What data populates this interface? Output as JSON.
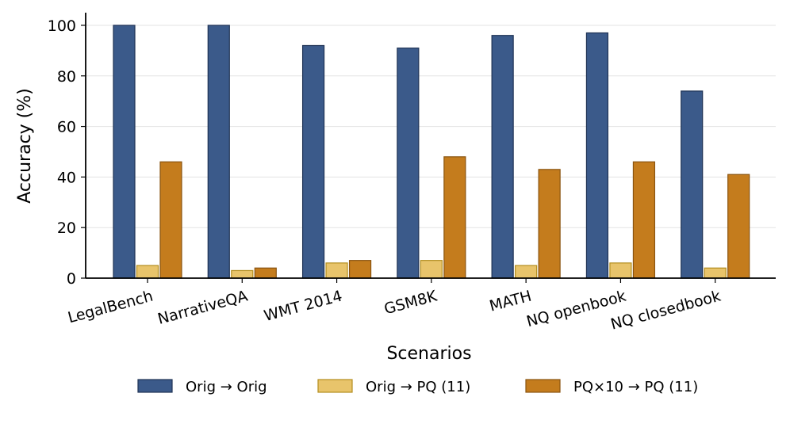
{
  "chart_data": {
    "type": "bar",
    "title": "",
    "xlabel": "Scenarios",
    "ylabel": "Accuracy (%)",
    "ylim": [
      0,
      105
    ],
    "yticks": [
      0,
      20,
      40,
      60,
      80,
      100
    ],
    "grid": "horizontal",
    "legend_position": "bottom",
    "categories": [
      "LegalBench",
      "NarrativeQA",
      "WMT 2014",
      "GSM8K",
      "MATH",
      "NQ openbook",
      "NQ closedbook"
    ],
    "series": [
      {
        "name": "Orig → Orig",
        "color": "#3b5a8a",
        "edge": "#1f3355",
        "values": [
          100,
          100,
          92,
          91,
          96,
          97,
          74
        ]
      },
      {
        "name": "Orig → PQ (11)",
        "color": "#e8c46b",
        "edge": "#b38e1f",
        "values": [
          5,
          3,
          6,
          7,
          5,
          6,
          4
        ]
      },
      {
        "name": "PQ×10 → PQ (11)",
        "color": "#c47c1d",
        "edge": "#8a5410",
        "values": [
          46,
          4,
          7,
          48,
          43,
          46,
          41
        ]
      }
    ]
  }
}
